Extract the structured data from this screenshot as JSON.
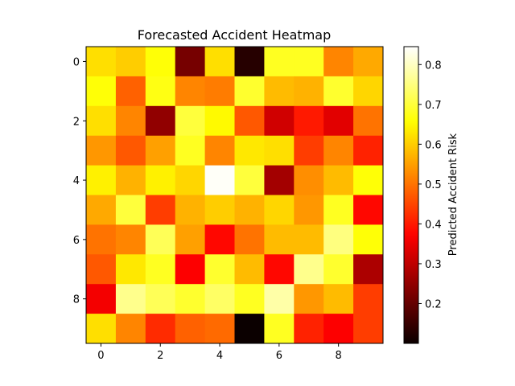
{
  "chart_data": {
    "type": "heatmap",
    "title": "Forecasted Accident Heatmap",
    "xlabel": "",
    "ylabel": "",
    "rows": 10,
    "cols": 10,
    "xticks": [
      0,
      2,
      4,
      6,
      8
    ],
    "yticks": [
      0,
      2,
      4,
      6,
      8
    ],
    "colormap": "hot",
    "vmin": 0.1,
    "vmax": 0.845,
    "colorbar": {
      "label": "Predicted Accident Risk",
      "ticks": [
        0.2,
        0.3,
        0.4,
        0.5,
        0.6,
        0.7,
        0.8
      ]
    },
    "values": [
      [
        0.62,
        0.6,
        0.66,
        0.22,
        0.62,
        0.13,
        0.68,
        0.68,
        0.52,
        0.56
      ],
      [
        0.66,
        0.48,
        0.67,
        0.52,
        0.51,
        0.69,
        0.58,
        0.57,
        0.69,
        0.61
      ],
      [
        0.62,
        0.52,
        0.25,
        0.7,
        0.65,
        0.47,
        0.32,
        0.4,
        0.34,
        0.5
      ],
      [
        0.54,
        0.47,
        0.55,
        0.68,
        0.52,
        0.63,
        0.62,
        0.44,
        0.52,
        0.41
      ],
      [
        0.64,
        0.57,
        0.64,
        0.61,
        0.84,
        0.7,
        0.27,
        0.53,
        0.58,
        0.66
      ],
      [
        0.56,
        0.7,
        0.44,
        0.57,
        0.6,
        0.57,
        0.61,
        0.54,
        0.68,
        0.38
      ],
      [
        0.5,
        0.52,
        0.72,
        0.55,
        0.38,
        0.5,
        0.58,
        0.58,
        0.75,
        0.66
      ],
      [
        0.47,
        0.63,
        0.68,
        0.37,
        0.69,
        0.58,
        0.38,
        0.76,
        0.69,
        0.28
      ],
      [
        0.36,
        0.76,
        0.72,
        0.69,
        0.73,
        0.68,
        0.78,
        0.54,
        0.58,
        0.44
      ],
      [
        0.62,
        0.52,
        0.42,
        0.48,
        0.49,
        0.1,
        0.68,
        0.41,
        0.37,
        0.44
      ]
    ]
  }
}
